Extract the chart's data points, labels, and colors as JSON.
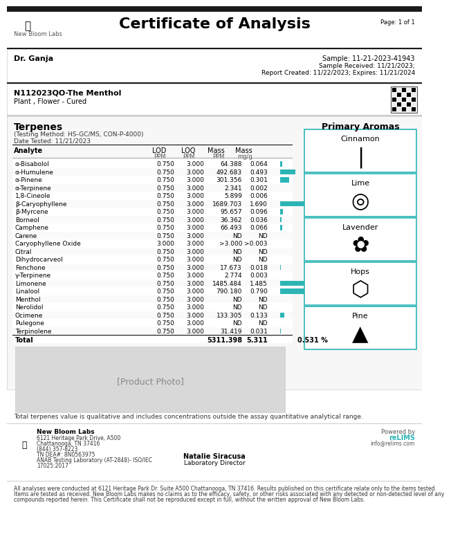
{
  "title": "Certificate of Analysis",
  "page": "Page: 1 of 1",
  "lab_name": "New Bloom Labs",
  "client": "Dr. Ganja",
  "sample_id": "Sample: 11-21-2023-41943",
  "sample_received": "Sample Received: 11/21/2023;",
  "report_created": "Report Created: 11/22/2023; Expires: 11/21/2024",
  "product_id": "N112023QO-The Menthol",
  "product_type": "Plant , Flower - Cured",
  "section_title": "Terpenes",
  "testing_method": "(Testing Method: HS-GC/MS, CON-P-4000)",
  "date_tested": "Date Tested: 11/21/2023",
  "col_headers": [
    "Analyte",
    "LOD",
    "LOQ",
    "Mass",
    "Mass"
  ],
  "col_subheaders": [
    "",
    "PPM",
    "PPM",
    "PPM",
    "mg/g"
  ],
  "analytes": [
    {
      "name": "α-Bisabolol",
      "lod": "0.750",
      "loq": "3.000",
      "mass_ppm": "64.388",
      "mass_mg": "0.064",
      "bar": 0.064
    },
    {
      "name": "α-Humulene",
      "lod": "0.750",
      "loq": "3.000",
      "mass_ppm": "492.683",
      "mass_mg": "0.493",
      "bar": 0.493
    },
    {
      "name": "α-Pinene",
      "lod": "0.750",
      "loq": "3.000",
      "mass_ppm": "301.356",
      "mass_mg": "0.301",
      "bar": 0.301
    },
    {
      "name": "α-Terpinene",
      "lod": "0.750",
      "loq": "3.000",
      "mass_ppm": "2.341",
      "mass_mg": "0.002",
      "bar": 0.002
    },
    {
      "name": "1,8-Cineole",
      "lod": "0.750",
      "loq": "3.000",
      "mass_ppm": "5.899",
      "mass_mg": "0.006",
      "bar": 0.006
    },
    {
      "name": "β-Caryophyllene",
      "lod": "0.750",
      "loq": "3.000",
      "mass_ppm": "1689.703",
      "mass_mg": "1.690",
      "bar": 1.69
    },
    {
      "name": "β-Myrcene",
      "lod": "0.750",
      "loq": "3.000",
      "mass_ppm": "95.657",
      "mass_mg": "0.096",
      "bar": 0.096
    },
    {
      "name": "Borneol",
      "lod": "0.750",
      "loq": "3.000",
      "mass_ppm": "36.362",
      "mass_mg": "0.036",
      "bar": 0.036
    },
    {
      "name": "Camphene",
      "lod": "0.750",
      "loq": "3.000",
      "mass_ppm": "66.493",
      "mass_mg": "0.066",
      "bar": 0.066
    },
    {
      "name": "Carene",
      "lod": "0.750",
      "loq": "3.000",
      "mass_ppm": "ND",
      "mass_mg": "ND",
      "bar": 0
    },
    {
      "name": "Caryophyllene Oxide",
      "lod": "3.000",
      "loq": "3.000",
      "mass_ppm": ">3.000",
      "mass_mg": ">0.003",
      "bar": 0.003
    },
    {
      "name": "Citral",
      "lod": "0.750",
      "loq": "3.000",
      "mass_ppm": "ND",
      "mass_mg": "ND",
      "bar": 0
    },
    {
      "name": "Dihydrocarveol",
      "lod": "0.750",
      "loq": "3.000",
      "mass_ppm": "ND",
      "mass_mg": "ND",
      "bar": 0
    },
    {
      "name": "Fenchone",
      "lod": "0.750",
      "loq": "3.000",
      "mass_ppm": "17.673",
      "mass_mg": "0.018",
      "bar": 0.018
    },
    {
      "name": "γ-Terpinene",
      "lod": "0.750",
      "loq": "3.000",
      "mass_ppm": "2.774",
      "mass_mg": "0.003",
      "bar": 0.003
    },
    {
      "name": "Limonene",
      "lod": "0.750",
      "loq": "3.000",
      "mass_ppm": "1485.484",
      "mass_mg": "1.485",
      "bar": 1.485
    },
    {
      "name": "Linalool",
      "lod": "0.750",
      "loq": "3.000",
      "mass_ppm": "790.180",
      "mass_mg": "0.790",
      "bar": 0.79
    },
    {
      "name": "Menthol",
      "lod": "0.750",
      "loq": "3.000",
      "mass_ppm": "ND",
      "mass_mg": "ND",
      "bar": 0
    },
    {
      "name": "Nerolidol",
      "lod": "0.750",
      "loq": "3.000",
      "mass_ppm": "ND",
      "mass_mg": "ND",
      "bar": 0
    },
    {
      "name": "Ocimene",
      "lod": "0.750",
      "loq": "3.000",
      "mass_ppm": "133.305",
      "mass_mg": "0.133",
      "bar": 0.133
    },
    {
      "name": "Pulegone",
      "lod": "0.750",
      "loq": "3.000",
      "mass_ppm": "ND",
      "mass_mg": "ND",
      "bar": 0
    },
    {
      "name": "Terpinolene",
      "lod": "0.750",
      "loq": "3.000",
      "mass_ppm": "31.419",
      "mass_mg": "0.031",
      "bar": 0.031
    }
  ],
  "total": {
    "name": "Total",
    "mass_ppm": "5311.398",
    "mass_mg": "5.311",
    "pct": "0.531 %"
  },
  "primary_aromas": [
    "Cinnamon",
    "Lime",
    "Lavender",
    "Hops",
    "Pine"
  ],
  "bar_color": "#2cb5b5",
  "bar_max": 1.69,
  "footer_lab": "New Bloom Labs",
  "footer_addr1": "6121 Heritage Park Drive, A500",
  "footer_addr2": "Chattanooga, TN 37416",
  "footer_phone": "(844) 357-8223",
  "footer_tn": "TN DEA#: 8N0563975",
  "footer_anab": "ANAB Testing Laboratory (AT-2848)- ISO/IEC",
  "footer_year": "17025:2017",
  "footer_signer": "Natalie Siracusa",
  "footer_title": "Laboratory Director",
  "footer_powered": "Powered by",
  "footer_relims": "reLIMS",
  "footer_email": "info@relims.com",
  "disclaimer": "All analyses were conducted at 6121 Heritage Park Dr. Suite A500 Chattanooga, TN 37416. Results published on this certificate relate only to the items tested. Items are tested as received. New Bloom Labs makes no claims as to the efficacy, safety, or other risks associated with any detected or non-detected level of any compounds reported herein. This Certificate shall not be reproduced except in full, without the written approval of New Bloom Labs.",
  "footnote": "Total terpenes value is qualitative and includes concentrations outside the assay quantitative analytical range.",
  "header_bg": "#1a1a1a",
  "section_bg": "#f5f5f5",
  "border_color": "#cccccc",
  "teal_color": "#2cb5b5",
  "light_teal": "#e0f5f5"
}
